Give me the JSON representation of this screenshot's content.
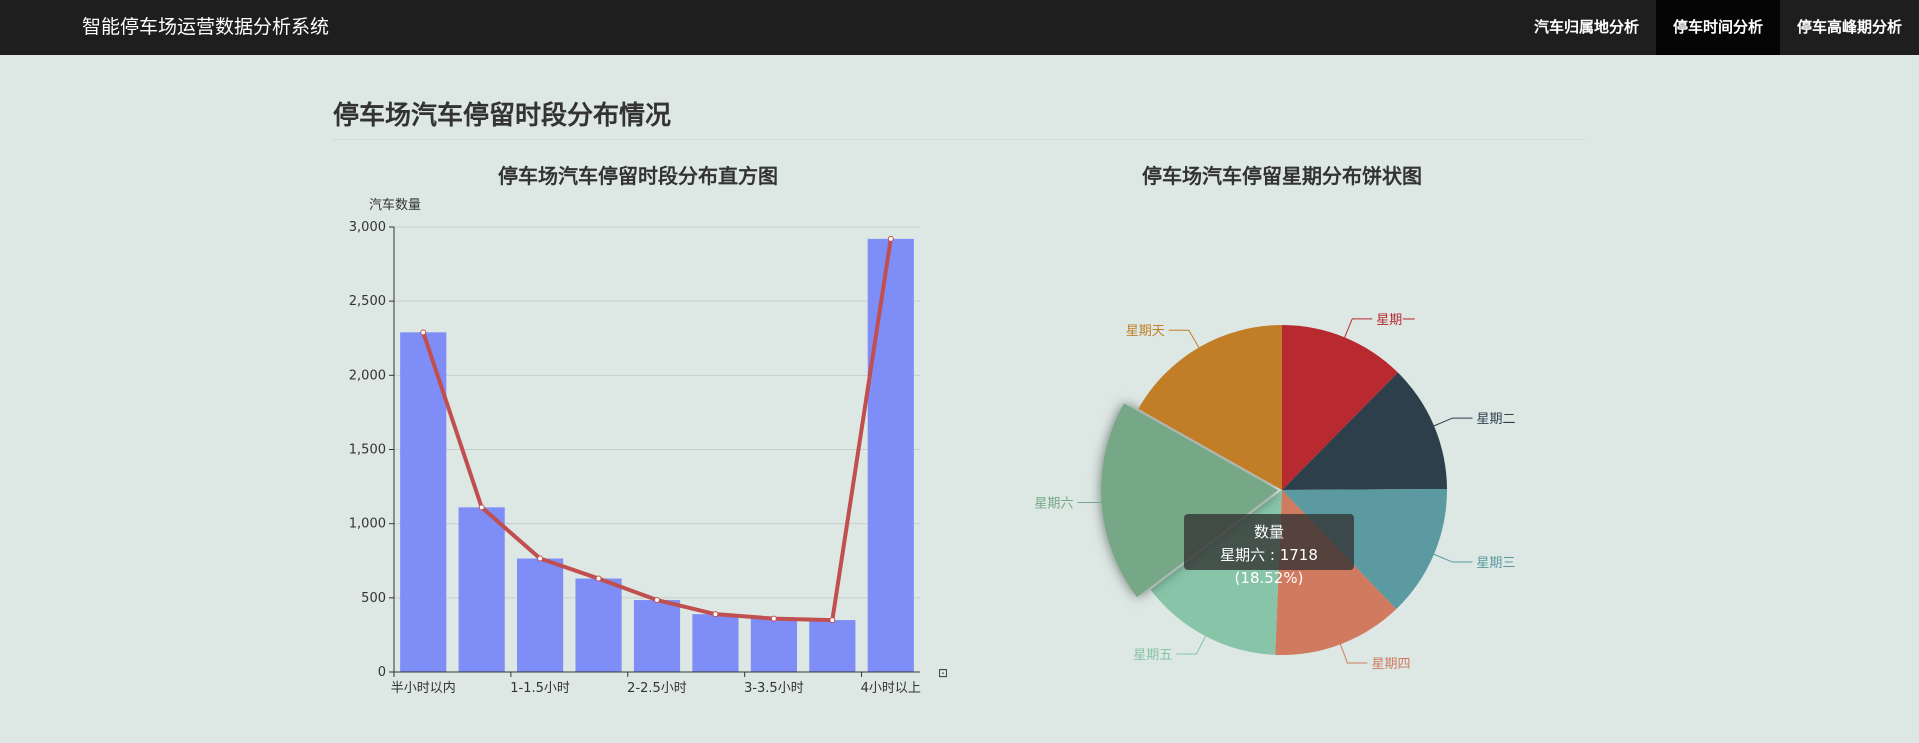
{
  "header": {
    "brand": "智能停车场运营数据分析系统",
    "nav": [
      "汽车归属地分析",
      "停车时间分析",
      "停车高峰期分析"
    ],
    "active_index": 1
  },
  "page": {
    "title": "停车场汽车停留时段分布情况"
  },
  "chart_data": [
    {
      "type": "bar",
      "title": "停车场汽车停留时段分布直方图",
      "ylabel": "汽车数量",
      "ylim": [
        0,
        3000
      ],
      "yticks": [
        0,
        500,
        1000,
        1500,
        2000,
        2500,
        3000
      ],
      "ytick_labels": [
        "0",
        "500",
        "1,000",
        "1,500",
        "2,000",
        "2,500",
        "3,000"
      ],
      "xtick_labels": [
        "半小时以内",
        "1-1.5小时",
        "2-2.5小时",
        "3-3.5小时",
        "4小时以上"
      ],
      "values": [
        2290,
        1110,
        765,
        630,
        485,
        390,
        360,
        350,
        2920
      ],
      "line_values": [
        2290,
        1110,
        765,
        630,
        485,
        390,
        360,
        350,
        2920
      ],
      "bar_color": "#7f8df7",
      "line_color": "#c14f4f",
      "grid": true
    },
    {
      "type": "pie",
      "title": "停车场汽车停留星期分布饼状图",
      "labels": [
        "星期一",
        "星期二",
        "星期三",
        "星期四",
        "星期五",
        "星期六",
        "星期天"
      ],
      "values": [
        1150,
        1160,
        1200,
        1190,
        1300,
        1718,
        1560
      ],
      "colors": [
        "#b82a30",
        "#2e3f4c",
        "#5a9aa0",
        "#d07b5f",
        "#87c4a8",
        "#76a888",
        "#c27e27"
      ],
      "highlighted": "星期六"
    }
  ],
  "tooltip": {
    "title": "数量",
    "text": "星期六 : 1718 (18.52%)"
  }
}
